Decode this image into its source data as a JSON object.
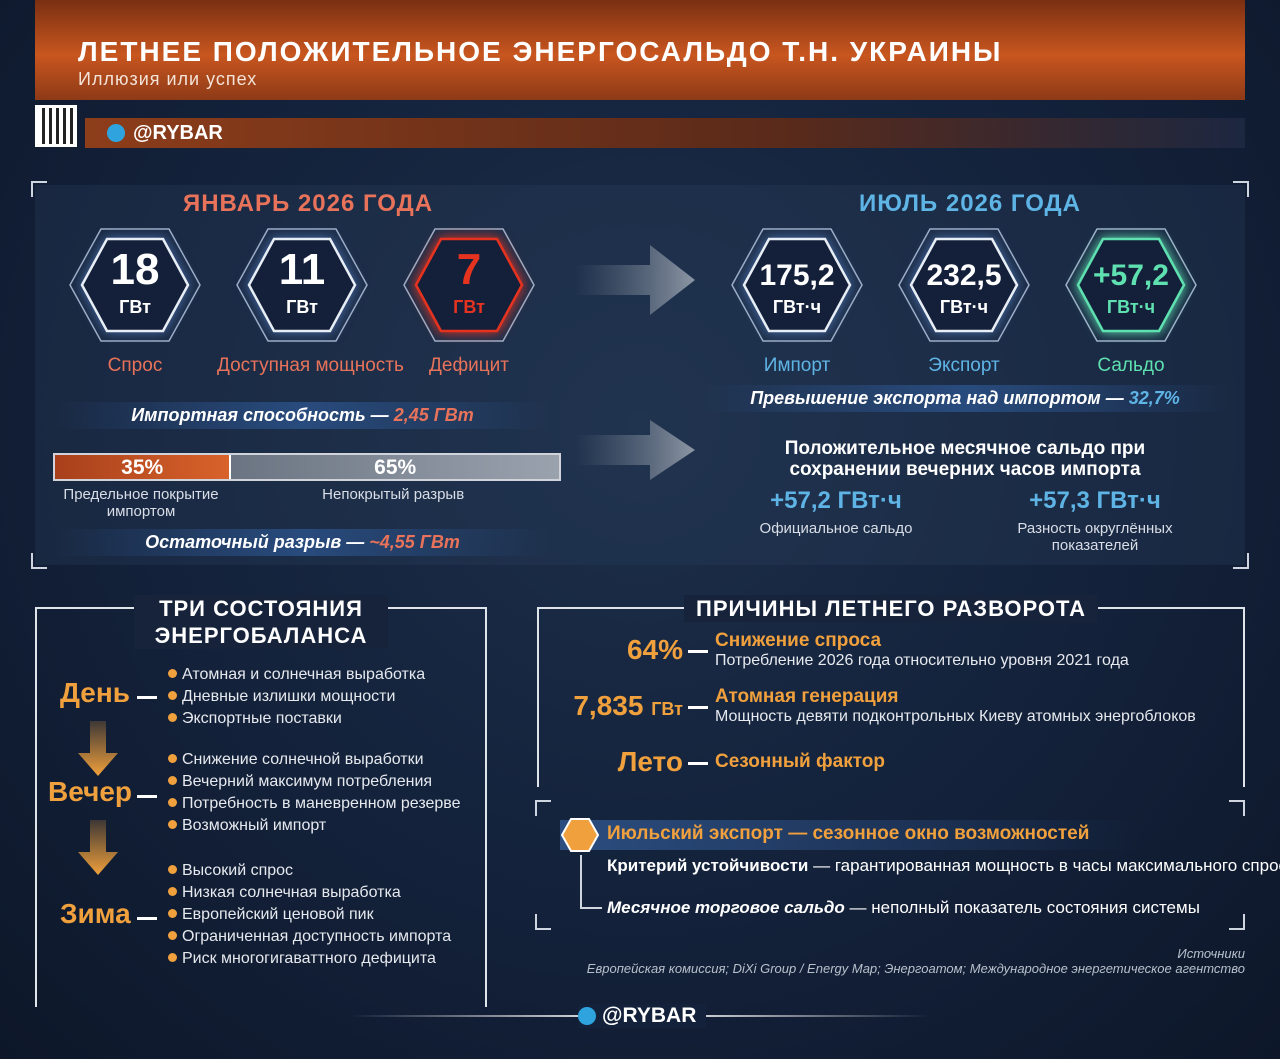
{
  "header": {
    "title": "ЛЕТНЕЕ ПОЛОЖИТЕЛЬНОЕ ЭНЕРГОСАЛЬДО Т.Н. УКРАИНЫ",
    "subtitle": "Иллюзия или успех",
    "channel": "@RYBAR"
  },
  "january": {
    "heading": "ЯНВАРЬ 2026 ГОДА",
    "indicators": [
      {
        "value": "18",
        "unit": "ГВт",
        "label": "Спрос"
      },
      {
        "value": "11",
        "unit": "ГВт",
        "label": "Доступная мощность"
      },
      {
        "value": "7",
        "unit": "ГВт",
        "label": "Дефицит"
      }
    ],
    "import_capacity": {
      "label": "Импортная способность —",
      "value": "2,45 ГВт"
    },
    "coverage": [
      {
        "value": 35,
        "label": "35%",
        "caption": "Предельное покрытие импортом"
      },
      {
        "value": 65,
        "label": "65%",
        "caption": "Непокрытый разрыв"
      }
    ],
    "residual_gap": {
      "label": "Остаточный разрыв —",
      "value": "~4,55 ГВт"
    }
  },
  "july": {
    "heading": "ИЮЛЬ 2026 ГОДА",
    "indicators": [
      {
        "value": "175,2",
        "unit": "ГВт·ч",
        "label": "Импорт"
      },
      {
        "value": "232,5",
        "unit": "ГВт·ч",
        "label": "Экспорт"
      },
      {
        "value": "+57,2",
        "unit": "ГВт·ч",
        "label": "Сальдо"
      }
    ],
    "export_excess": {
      "label": "Превышение экспорта над импортом —",
      "value": "32,7%"
    },
    "monthly_balance": {
      "title": "Положительное месячное сальдо при сохранении вечерних часов импорта",
      "figures": [
        {
          "value": "+57,2 ГВт·ч",
          "caption": "Официальное сальдо"
        },
        {
          "value": "+57,3 ГВт·ч",
          "caption": "Разность округлённых показателей"
        }
      ]
    }
  },
  "states": {
    "title": "ТРИ СОСТОЯНИЯ ЭНЕРГОБАЛАНСА",
    "periods": [
      {
        "name": "День",
        "bullets": [
          "Атомная и солнечная выработка",
          "Дневные излишки мощности",
          "Экспортные поставки"
        ]
      },
      {
        "name": "Вечер",
        "bullets": [
          "Снижение солнечной выработки",
          "Вечерний максимум потребления",
          "Потребность в маневренном резерве",
          "Возможный импорт"
        ]
      },
      {
        "name": "Зима",
        "bullets": [
          "Высокий спрос",
          "Низкая солнечная выработка",
          "Европейский ценовой пик",
          "Ограниченная доступность импорта",
          "Риск многогигаваттного дефицита"
        ]
      }
    ]
  },
  "reasons": {
    "title": "ПРИЧИНЫ ЛЕТНЕГО РАЗВОРОТА",
    "items": [
      {
        "value": "64%",
        "title": "Снижение спроса",
        "description": "Потребление 2026 года относительно уровня 2021 года"
      },
      {
        "value": "7,835",
        "unit": "ГВт",
        "title": "Атомная генерация",
        "description": "Мощность девяти подконтрольных Киеву атомных энергоблоков"
      },
      {
        "value": "Лето",
        "title": "Сезонный фактор"
      }
    ]
  },
  "summary": {
    "title": "Июльский экспорт — сезонное окно возможностей",
    "points": [
      {
        "term": "Критерий устойчивости",
        "text": "— гарантированная мощность в часы максимального спроса"
      },
      {
        "term": "Месячное торговое сальдо",
        "text": "— неполный показатель состояния системы"
      }
    ]
  },
  "sources": {
    "title": "Источники",
    "text": "Европейская комиссия; DiXi Group / Energy Map; Энергоатом; Международное энергетическое агентство"
  },
  "footer": {
    "channel": "@RYBAR"
  }
}
